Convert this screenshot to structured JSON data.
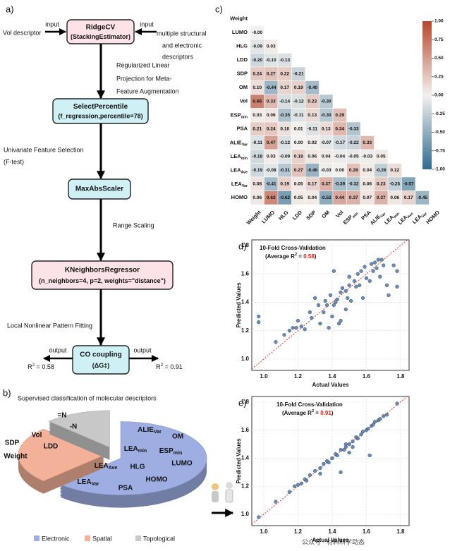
{
  "flowchart": {
    "label": "a)",
    "node_colors": [
      "#fde3e8",
      "#cff0f4",
      "#cff0f4",
      "#fde3e8",
      "#cff0f4"
    ],
    "nodes": [
      {
        "lines": [
          "RidgeCV",
          "(StackingEstimator)"
        ]
      },
      {
        "lines": [
          "SelectPercentile",
          "(f_regression,percentile=78)"
        ]
      },
      {
        "lines": [
          "MaxAbsScaler"
        ]
      },
      {
        "lines": [
          "KNeighborsRegressor",
          "(n_neighbors=4, p=2, weights=\"distance\")"
        ]
      },
      {
        "lines": [
          "CO coupling",
          "(ΔG‡)"
        ]
      }
    ],
    "inputs": [
      {
        "arrow": "input",
        "text": [
          "Vol descriptor"
        ]
      },
      {
        "arrow": "input",
        "text": [
          "multiple structural",
          "and electronic",
          "descriptors"
        ]
      }
    ],
    "steps": [
      [
        "Regularized Linear",
        "Projection for Meta-",
        "Feature Augmentation"
      ],
      [
        "Univariate Feature Selection",
        "(F-test)"
      ],
      [
        "Range Scaling"
      ],
      [
        "Local Nonlinear Pattern Fitting"
      ]
    ],
    "outputs_color": "#e0201b",
    "outputs": [
      {
        "arrow": "output",
        "result": {
          "pre": "R",
          "sup": "2",
          "post": " = 0.58"
        }
      },
      {
        "arrow": "output",
        "result": {
          "pre": "R",
          "sup": "2",
          "post": " = 0.91"
        }
      }
    ]
  },
  "chart_data": [
    {
      "type": "heatmap",
      "label": "c)",
      "labels": [
        "Weight",
        "LUMO",
        "HLG",
        "LDD",
        "SDP",
        "OM",
        "Vol",
        {
          "pre": "ESP",
          "sub": "min"
        },
        "PSA",
        {
          "pre": "ALIE",
          "sub": "Var"
        },
        {
          "pre": "LEA",
          "sub": "min"
        },
        {
          "pre": "LEA",
          "sub": "Ave"
        },
        {
          "pre": "LEA",
          "sub": "Var"
        },
        "HOMO"
      ],
      "values": [
        [],
        [
          0
        ],
        [
          -0.09,
          0.03
        ],
        [
          -0.2,
          -0.1,
          -0.13
        ],
        [
          0.24,
          0.27,
          0.22,
          -0.21
        ],
        [
          0.1,
          -0.44,
          0.17,
          0.19,
          -0.4
        ],
        [
          0.66,
          0.33,
          -0.14,
          -0.12,
          0.23,
          -0.3
        ],
        [
          0.03,
          0.06,
          -0.35,
          -0.11,
          0.13,
          -0.3,
          0.29
        ],
        [
          0.21,
          0.24,
          0.1,
          0.01,
          -0.11,
          0.13,
          0.34,
          -0.33
        ],
        [
          -0.11,
          0.47,
          -0.12,
          0.0,
          0.02,
          -0.07,
          -0.17,
          -0.22,
          0.33
        ],
        [
          -0.18,
          0.03,
          -0.09,
          0.18,
          0.06,
          0.04,
          -0.04,
          -0.05,
          -0.03,
          0.05
        ],
        [
          -0.19,
          -0.08,
          -0.31,
          0.27,
          -0.46,
          -0.03,
          0.0,
          0.28,
          0.04,
          -0.26,
          0.12
        ],
        [
          0.08,
          -0.41,
          0.19,
          0.05,
          0.17,
          0.37,
          -0.39,
          -0.32,
          0.06,
          0.23,
          -0.25,
          -0.57
        ],
        [
          0.06,
          0.62,
          -0.62,
          0.05,
          0.04,
          -0.52,
          0.44,
          0.37,
          0.07,
          0.37,
          0.06,
          0.17,
          -0.45
        ]
      ],
      "value_labels": [
        [],
        [
          "-0.00"
        ],
        [
          "-0.09",
          "0.03"
        ],
        [
          "-0.20",
          "-0.10",
          "-0.13"
        ],
        [
          "0.24",
          "0.27",
          "0.22",
          "-0.21"
        ],
        [
          "0.10",
          "-0.44",
          "0.17",
          "0.19",
          "-0.40"
        ],
        [
          "0.66",
          "0.33",
          "-0.14",
          "-0.12",
          "0.23",
          "-0.30"
        ],
        [
          "0.03",
          "0.06",
          "-0.35",
          "-0.11",
          "0.13",
          "-0.30",
          "0.29"
        ],
        [
          "0.21",
          "0.24",
          "0.10",
          "0.01",
          "-0.11",
          "0.13",
          "0.34",
          "-0.33"
        ],
        [
          "-0.11",
          "0.47",
          "-0.12",
          "0.00",
          "0.02",
          "-0.07",
          "-0.17",
          "-0.22",
          "0.33"
        ],
        [
          "-0.18",
          "0.03",
          "-0.09",
          "0.18",
          "0.06",
          "0.04",
          "-0.04",
          "-0.05",
          "-0.03",
          "0.05"
        ],
        [
          "-0.19",
          "-0.08",
          "-0.31",
          "0.27",
          "-0.46",
          "-0.03",
          "0.00",
          "0.28",
          "0.04",
          "-0.26",
          "0.12"
        ],
        [
          "0.08",
          "-0.41",
          "0.19",
          "0.05",
          "0.17",
          "0.37",
          "-0.39",
          "-0.32",
          "0.06",
          "0.23",
          "-0.25",
          "-0.57"
        ],
        [
          "0.06",
          "0.62",
          "-0.62",
          "0.05",
          "0.04",
          "-0.52",
          "0.44",
          "0.37",
          "0.07",
          "0.37",
          "0.06",
          "0.17",
          "-0.45"
        ]
      ],
      "colorbar": {
        "lim": [
          -1,
          1
        ],
        "colors": [
          "#2f6b8f",
          "#f3f1ef",
          "#b5472e"
        ],
        "ticks": [
          {
            "value": 1,
            "label": "1.00"
          },
          0.75,
          {
            "value": 0.5,
            "label": "0.50"
          },
          0.25,
          {
            "value": 0,
            "label": "0.00"
          },
          -0.25,
          {
            "value": -0.5,
            "label": "-0.50"
          },
          -0.75,
          {
            "value": -1,
            "label": "-1.00"
          }
        ]
      }
    },
    {
      "type": "scatter",
      "label": "d)",
      "x": [
        0.97,
        0.97,
        1.07,
        1.12,
        1.15,
        1.17,
        1.19,
        1.2,
        1.22,
        1.24,
        1.27,
        1.28,
        1.3,
        1.32,
        1.33,
        1.35,
        1.36,
        1.37,
        1.38,
        1.39,
        1.4,
        1.41,
        1.42,
        1.43,
        1.44,
        1.45,
        1.45,
        1.46,
        1.48,
        1.49,
        1.5,
        1.5,
        1.51,
        1.53,
        1.54,
        1.55,
        1.56,
        1.57,
        1.58,
        1.59,
        1.6,
        1.62,
        1.63,
        1.64,
        1.65,
        1.66,
        1.67,
        1.68,
        1.69,
        1.7,
        1.72,
        1.73,
        1.76,
        1.78,
        1.78,
        1.41,
        1.48
      ],
      "values": [
        1.3,
        1.26,
        1.12,
        1.17,
        1.2,
        1.22,
        1.22,
        1.27,
        1.23,
        1.21,
        1.33,
        1.29,
        1.43,
        1.38,
        1.25,
        1.33,
        1.41,
        1.38,
        1.22,
        1.45,
        1.3,
        1.38,
        1.4,
        1.42,
        1.25,
        1.27,
        1.47,
        1.5,
        1.48,
        1.43,
        1.58,
        1.52,
        1.41,
        1.55,
        1.51,
        1.6,
        1.52,
        1.62,
        1.43,
        1.65,
        1.57,
        1.55,
        1.67,
        1.62,
        1.68,
        1.64,
        1.7,
        1.58,
        1.7,
        1.66,
        1.52,
        1.45,
        1.66,
        1.62,
        1.51,
        1.62,
        1.35
      ],
      "xlim": [
        0.93,
        1.85
      ],
      "ylim": [
        0.92,
        1.84
      ],
      "xticks": [
        {
          "value": 1,
          "label": "1.0"
        },
        1.2,
        1.4,
        1.6,
        1.8
      ],
      "yticks": [
        {
          "value": 1,
          "label": "1.0"
        },
        1.2,
        1.4,
        1.6,
        1.8
      ],
      "xlabel": "Actual Values",
      "ylabel": "Predicted Values",
      "grid": true,
      "color": "#5579a3",
      "line_color": "#e03c31",
      "highlight_color": "#e0201b",
      "annotation": {
        "title": "10-Fold Cross-Validation",
        "r2": {
          "pre": "(Average R",
          "sup": "2",
          "mid": " = ",
          "value": "0.58",
          "post": ")"
        }
      }
    },
    {
      "type": "scatter",
      "label": "e)",
      "x": [
        0.97,
        1.07,
        1.15,
        1.18,
        1.2,
        1.22,
        1.24,
        1.27,
        1.3,
        1.33,
        1.35,
        1.37,
        1.38,
        1.4,
        1.42,
        1.43,
        1.45,
        1.47,
        1.48,
        1.5,
        1.5,
        1.52,
        1.54,
        1.55,
        1.57,
        1.58,
        1.6,
        1.61,
        1.63,
        1.64,
        1.65,
        1.67,
        1.68,
        1.7,
        1.72,
        1.78,
        1.52,
        1.45,
        1.62,
        1.33,
        1.25,
        1.48
      ],
      "values": [
        0.98,
        1.09,
        1.16,
        1.2,
        1.21,
        1.22,
        1.25,
        1.28,
        1.31,
        1.33,
        1.36,
        1.38,
        1.37,
        1.4,
        1.43,
        1.42,
        1.46,
        1.46,
        1.48,
        1.5,
        1.44,
        1.52,
        1.55,
        1.54,
        1.57,
        1.59,
        1.6,
        1.61,
        1.63,
        1.64,
        1.66,
        1.67,
        1.68,
        1.7,
        1.71,
        1.79,
        1.48,
        1.3,
        1.42,
        1.29,
        1.24,
        1.5
      ],
      "xlim": [
        0.93,
        1.85
      ],
      "ylim": [
        0.92,
        1.84
      ],
      "xticks": [
        {
          "value": 1,
          "label": "1.0"
        },
        1.2,
        1.4,
        1.6,
        1.8
      ],
      "yticks": [
        {
          "value": 1,
          "label": "1.0"
        },
        1.2,
        1.4,
        1.6,
        1.8
      ],
      "xlabel": "Actual Values",
      "ylabel": "Predicted Values",
      "grid": true,
      "color": "#5579a3",
      "line_color": "#e03c31",
      "highlight_color": "#e0201b",
      "annotation": {
        "title": "10-Fold Cross-Validation",
        "r2": {
          "pre": "(Average R",
          "sup": "2",
          "mid": " = ",
          "value": "0.91",
          "post": ")"
        }
      }
    },
    {
      "type": "pie",
      "label": "b)",
      "title": "Supervised classification of molecular descriptors",
      "categories": [
        "Electronic",
        "Spatial",
        "Topological"
      ],
      "values": [
        10,
        4,
        2
      ],
      "colors": [
        "#9eaee3",
        "#f2b198",
        "#c8c8c8"
      ],
      "members": [
        [
          {
            "pre": "ALIE",
            "sub": "Var"
          },
          "OM",
          {
            "pre": "LEA",
            "sub": "min"
          },
          {
            "pre": "ESP",
            "sub": "min"
          },
          "LUMO",
          {
            "pre": "LEA",
            "sub": "Ave"
          },
          "HLG",
          "HOMO",
          {
            "pre": "LEA",
            "sub": "Var"
          },
          "PSA"
        ],
        [
          "Vol",
          "SDP",
          "LDD",
          "Weight"
        ],
        [
          "=N",
          "-N"
        ]
      ]
    }
  ],
  "watermark": "公众号 · 材料科学动态"
}
